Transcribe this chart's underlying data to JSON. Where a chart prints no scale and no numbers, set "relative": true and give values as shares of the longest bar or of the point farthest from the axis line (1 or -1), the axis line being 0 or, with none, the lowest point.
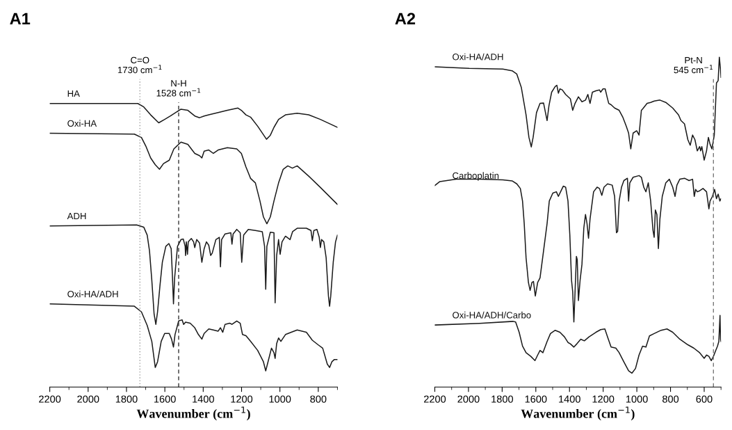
{
  "chart_data": [
    {
      "type": "line",
      "title": "A1",
      "xlabel": "Wavenumber (cm$^{−1}$)",
      "xlim": [
        2200,
        700
      ],
      "xticks": [
        2200,
        2000,
        1800,
        1600,
        1400,
        1200,
        1000,
        800
      ],
      "relative": true,
      "tick_labels": "x",
      "marker": "none",
      "line_style": "solid",
      "ref_lines": [
        {
          "axis": "x",
          "value": 1730,
          "label": "C=O\n1730 cm$^{−1}$",
          "color": "#999999",
          "line_style": "dotted"
        },
        {
          "axis": "x",
          "value": 1528,
          "label": "N-H\n1528 cm$^{−1}$",
          "color": "#333333",
          "line_style": "dashed"
        }
      ],
      "series": [
        {
          "name": "HA",
          "color": "#1a1a1a",
          "x": [
            2200,
            1741,
            1710,
            1674,
            1632,
            1601,
            1571,
            1516,
            1480,
            1444,
            1419,
            1395,
            1371,
            1322,
            1274,
            1219,
            1201,
            1177,
            1153,
            1116,
            1092,
            1070,
            1050,
            1031,
            1007,
            971,
            910,
            850,
            789,
            700
          ],
          "values": [
            1.0,
            1.0,
            0.988,
            0.96,
            0.932,
            0.944,
            0.956,
            0.98,
            0.976,
            0.956,
            0.95,
            0.956,
            0.96,
            0.968,
            0.976,
            0.984,
            0.976,
            0.96,
            0.952,
            0.92,
            0.896,
            0.874,
            0.888,
            0.916,
            0.944,
            0.96,
            0.966,
            0.96,
            0.944,
            0.916
          ]
        },
        {
          "name": "Oxi-HA",
          "color": "#1a1a1a",
          "x": [
            2200,
            1759,
            1722,
            1698,
            1674,
            1650,
            1628,
            1607,
            1577,
            1553,
            1516,
            1480,
            1444,
            1419,
            1407,
            1395,
            1371,
            1347,
            1322,
            1274,
            1225,
            1201,
            1177,
            1153,
            1128,
            1104,
            1086,
            1068,
            1050,
            1031,
            1007,
            983,
            959,
            935,
            910,
            850,
            789,
            700
          ],
          "values": [
            0.895,
            0.892,
            0.88,
            0.848,
            0.808,
            0.784,
            0.768,
            0.788,
            0.8,
            0.84,
            0.864,
            0.856,
            0.824,
            0.816,
            0.808,
            0.832,
            0.836,
            0.824,
            0.836,
            0.844,
            0.84,
            0.824,
            0.776,
            0.736,
            0.72,
            0.656,
            0.6,
            0.576,
            0.6,
            0.656,
            0.72,
            0.768,
            0.78,
            0.772,
            0.78,
            0.744,
            0.704,
            0.644
          ]
        },
        {
          "name": "ADH",
          "color": "#1a1a1a",
          "x": [
            2200,
            1747,
            1710,
            1692,
            1680,
            1668,
            1656,
            1647,
            1638,
            1625,
            1613,
            1595,
            1579,
            1567,
            1561,
            1555,
            1549,
            1534,
            1516,
            1504,
            1494,
            1492,
            1488,
            1482,
            1478,
            1462,
            1450,
            1444,
            1434,
            1419,
            1407,
            1395,
            1383,
            1371,
            1361,
            1353,
            1334,
            1316,
            1310,
            1304,
            1286,
            1256,
            1250,
            1244,
            1225,
            1207,
            1199,
            1189,
            1165,
            1128,
            1092,
            1080,
            1074,
            1068,
            1050,
            1031,
            1025,
            1017,
            1007,
            999,
            989,
            971,
            947,
            934,
            910,
            862,
            838,
            831,
            823,
            807,
            795,
            789,
            783,
            771,
            759,
            747,
            741,
            735,
            722,
            710,
            700
          ],
          "values": [
            0.568,
            0.572,
            0.564,
            0.536,
            0.48,
            0.377,
            0.257,
            0.221,
            0.265,
            0.361,
            0.44,
            0.496,
            0.506,
            0.488,
            0.4,
            0.293,
            0.385,
            0.496,
            0.52,
            0.522,
            0.496,
            0.464,
            0.512,
            0.468,
            0.512,
            0.524,
            0.512,
            0.492,
            0.52,
            0.508,
            0.44,
            0.488,
            0.512,
            0.5,
            0.464,
            0.472,
            0.52,
            0.528,
            0.424,
            0.52,
            0.54,
            0.544,
            0.504,
            0.54,
            0.556,
            0.544,
            0.44,
            0.536,
            0.556,
            0.552,
            0.548,
            0.496,
            0.345,
            0.496,
            0.546,
            0.544,
            0.297,
            0.464,
            0.52,
            0.468,
            0.512,
            0.532,
            0.52,
            0.548,
            0.56,
            0.56,
            0.552,
            0.516,
            0.552,
            0.556,
            0.528,
            0.492,
            0.52,
            0.512,
            0.456,
            0.321,
            0.285,
            0.321,
            0.44,
            0.512,
            0.536
          ]
        },
        {
          "name": "Oxi-HA/ADH",
          "color": "#1a1a1a",
          "x": [
            2200,
            1759,
            1722,
            1692,
            1668,
            1650,
            1638,
            1619,
            1601,
            1577,
            1565,
            1555,
            1547,
            1528,
            1510,
            1502,
            1492,
            1468,
            1444,
            1425,
            1407,
            1395,
            1371,
            1347,
            1322,
            1310,
            1298,
            1286,
            1262,
            1250,
            1225,
            1207,
            1195,
            1177,
            1153,
            1116,
            1086,
            1074,
            1062,
            1044,
            1031,
            1025,
            1017,
            1007,
            995,
            971,
            941,
            910,
            862,
            831,
            801,
            777,
            753,
            741,
            729,
            716,
            700
          ],
          "values": [
            0.293,
            0.285,
            0.265,
            0.217,
            0.161,
            0.069,
            0.089,
            0.161,
            0.189,
            0.189,
            0.169,
            0.141,
            0.185,
            0.233,
            0.237,
            0.221,
            0.229,
            0.225,
            0.209,
            0.185,
            0.169,
            0.189,
            0.205,
            0.201,
            0.197,
            0.209,
            0.193,
            0.221,
            0.225,
            0.221,
            0.233,
            0.225,
            0.185,
            0.181,
            0.161,
            0.129,
            0.089,
            0.057,
            0.089,
            0.137,
            0.121,
            0.101,
            0.153,
            0.173,
            0.161,
            0.185,
            0.193,
            0.201,
            0.193,
            0.165,
            0.149,
            0.137,
            0.081,
            0.069,
            0.089,
            0.097,
            0.097
          ]
        }
      ]
    },
    {
      "type": "line",
      "title": "A2",
      "xlabel": "Wavenumber (cm$^{−1}$)",
      "xlim": [
        2200,
        500
      ],
      "xticks": [
        2200,
        2000,
        1800,
        1600,
        1400,
        1200,
        1000,
        800,
        600
      ],
      "relative": true,
      "tick_labels": "x",
      "marker": "none",
      "line_style": "solid",
      "ref_lines": [
        {
          "axis": "x",
          "value": 545,
          "label": "Pt-N\n545 cm$^{−1}$",
          "color": "#777777",
          "line_style": "dashed"
        }
      ],
      "series": [
        {
          "name": "Oxi-HA/ADH",
          "color": "#1a1a1a",
          "x": [
            2200,
            1996,
            1796,
            1741,
            1713,
            1686,
            1658,
            1641,
            1627,
            1616,
            1596,
            1575,
            1554,
            1540,
            1533,
            1522,
            1506,
            1485,
            1475,
            1466,
            1457,
            1443,
            1423,
            1395,
            1381,
            1367,
            1347,
            1326,
            1305,
            1291,
            1278,
            1264,
            1243,
            1222,
            1215,
            1201,
            1188,
            1177,
            1167,
            1153,
            1132,
            1105,
            1084,
            1063,
            1049,
            1036,
            1022,
            1001,
            987,
            973,
            966,
            939,
            918,
            897,
            863,
            828,
            787,
            752,
            738,
            717,
            697,
            683,
            669,
            655,
            641,
            627,
            621,
            614,
            600,
            586,
            575,
            565,
            554,
            540,
            527,
            517,
            510,
            503,
            500
          ],
          "values": [
            0.971,
            0.966,
            0.964,
            0.959,
            0.949,
            0.908,
            0.825,
            0.757,
            0.728,
            0.757,
            0.832,
            0.86,
            0.861,
            0.825,
            0.808,
            0.853,
            0.894,
            0.911,
            0.915,
            0.891,
            0.904,
            0.901,
            0.887,
            0.874,
            0.839,
            0.86,
            0.88,
            0.865,
            0.87,
            0.887,
            0.86,
            0.894,
            0.898,
            0.901,
            0.894,
            0.904,
            0.904,
            0.88,
            0.86,
            0.856,
            0.846,
            0.839,
            0.819,
            0.791,
            0.77,
            0.722,
            0.77,
            0.777,
            0.764,
            0.839,
            0.843,
            0.86,
            0.863,
            0.867,
            0.87,
            0.863,
            0.846,
            0.825,
            0.808,
            0.798,
            0.75,
            0.733,
            0.764,
            0.75,
            0.716,
            0.729,
            0.716,
            0.729,
            0.688,
            0.716,
            0.757,
            0.736,
            0.722,
            0.764,
            0.922,
            0.929,
            1.0,
            0.963,
            0.939
          ]
        },
        {
          "name": "Carboplatin",
          "color": "#1a1a1a",
          "x": [
            2200,
            2170,
            2073,
            1934,
            1796,
            1741,
            1713,
            1692,
            1679,
            1669,
            1658,
            1644,
            1634,
            1623,
            1614,
            1603,
            1589,
            1575,
            1554,
            1533,
            1520,
            1499,
            1478,
            1466,
            1453,
            1437,
            1423,
            1409,
            1398,
            1388,
            1381,
            1374,
            1367,
            1359,
            1354,
            1347,
            1337,
            1326,
            1315,
            1305,
            1296,
            1287,
            1278,
            1257,
            1236,
            1222,
            1208,
            1195,
            1174,
            1146,
            1132,
            1121,
            1114,
            1105,
            1091,
            1077,
            1056,
            1049,
            1042,
            1022,
            987,
            973,
            959,
            946,
            932,
            918,
            904,
            897,
            890,
            881,
            872,
            863,
            849,
            828,
            807,
            787,
            773,
            762,
            745,
            717,
            690,
            669,
            659,
            651,
            641,
            627,
            607,
            586,
            572,
            565,
            551,
            538,
            527,
            517,
            507,
            500
          ],
          "values": [
            0.611,
            0.623,
            0.63,
            0.63,
            0.628,
            0.625,
            0.616,
            0.602,
            0.564,
            0.496,
            0.392,
            0.317,
            0.293,
            0.317,
            0.32,
            0.276,
            0.317,
            0.331,
            0.413,
            0.496,
            0.564,
            0.588,
            0.592,
            0.578,
            0.592,
            0.609,
            0.606,
            0.564,
            0.461,
            0.324,
            0.289,
            0.197,
            0.289,
            0.396,
            0.386,
            0.262,
            0.324,
            0.372,
            0.482,
            0.523,
            0.496,
            0.451,
            0.509,
            0.592,
            0.606,
            0.602,
            0.581,
            0.606,
            0.616,
            0.612,
            0.578,
            0.468,
            0.472,
            0.564,
            0.606,
            0.626,
            0.633,
            0.564,
            0.619,
            0.636,
            0.641,
            0.636,
            0.606,
            0.592,
            0.619,
            0.564,
            0.475,
            0.454,
            0.537,
            0.523,
            0.42,
            0.509,
            0.578,
            0.619,
            0.63,
            0.606,
            0.578,
            0.612,
            0.63,
            0.633,
            0.626,
            0.63,
            0.578,
            0.599,
            0.592,
            0.595,
            0.602,
            0.592,
            0.54,
            0.564,
            0.578,
            0.599,
            0.571,
            0.585,
            0.564,
            0.571
          ]
        },
        {
          "name": "Oxi-HA/ADH/Carbo",
          "color": "#1a1a1a",
          "x": [
            2200,
            1934,
            1734,
            1720,
            1699,
            1679,
            1658,
            1630,
            1605,
            1589,
            1575,
            1558,
            1533,
            1513,
            1485,
            1457,
            1430,
            1409,
            1395,
            1374,
            1356,
            1333,
            1312,
            1284,
            1243,
            1215,
            1190,
            1174,
            1153,
            1125,
            1105,
            1077,
            1049,
            1029,
            1008,
            987,
            966,
            946,
            925,
            897,
            856,
            821,
            787,
            745,
            697,
            662,
            627,
            600,
            586,
            572,
            558,
            545,
            531,
            521,
            513,
            506,
            503,
            500
          ],
          "values": [
            0.188,
            0.193,
            0.199,
            0.197,
            0.166,
            0.124,
            0.104,
            0.093,
            0.08,
            0.097,
            0.111,
            0.104,
            0.138,
            0.162,
            0.172,
            0.166,
            0.152,
            0.135,
            0.131,
            0.121,
            0.131,
            0.145,
            0.14,
            0.152,
            0.166,
            0.174,
            0.176,
            0.152,
            0.121,
            0.118,
            0.104,
            0.076,
            0.049,
            0.042,
            0.056,
            0.097,
            0.124,
            0.121,
            0.155,
            0.162,
            0.172,
            0.176,
            0.166,
            0.145,
            0.128,
            0.118,
            0.104,
            0.087,
            0.097,
            0.093,
            0.08,
            0.093,
            0.111,
            0.124,
            0.138,
            0.217,
            0.145,
            0.138
          ]
        }
      ]
    }
  ]
}
